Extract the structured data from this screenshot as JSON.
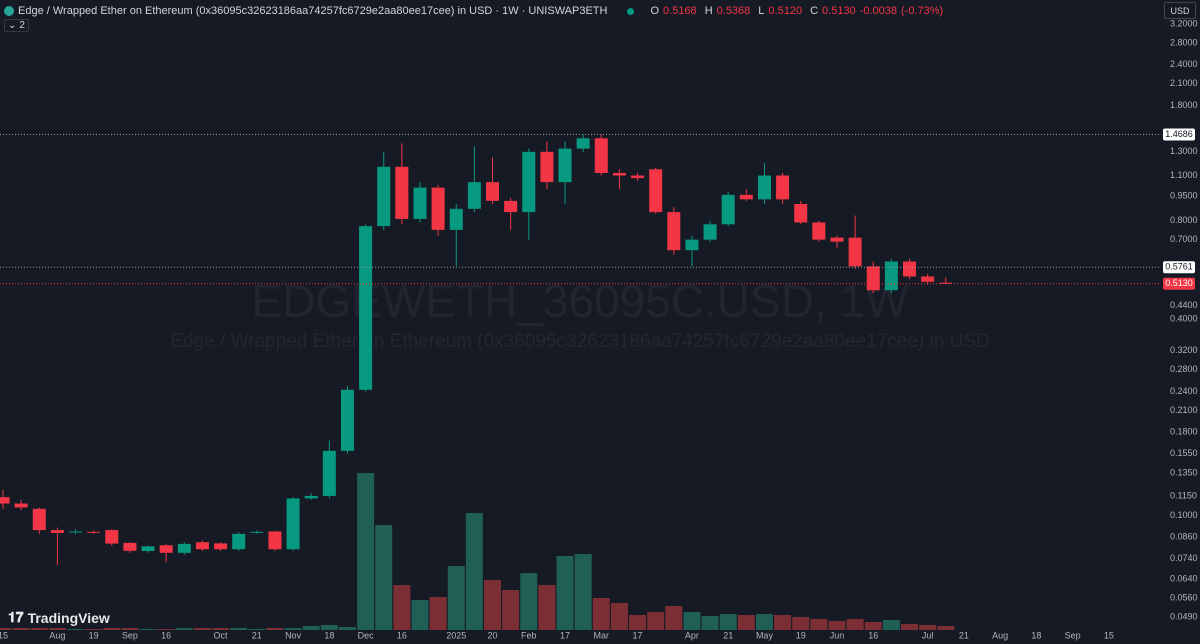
{
  "header": {
    "symbol": "Edge / Wrapped Ether on Ethereum (0x36095c32623186aa74257fc6729e2aa80ee17cee) in USD · 1W · UNISWAP3ETH",
    "o_label": "O",
    "open": "0.5168",
    "h_label": "H",
    "high": "0.5368",
    "l_label": "L",
    "low": "0.5120",
    "c_label": "C",
    "close": "0.5130",
    "change": "-0.0038",
    "change_pct": "(-0.73%)",
    "indicators": "2",
    "currency": "USD",
    "logo": "TradingView"
  },
  "chart_data": {
    "type": "candlestick",
    "watermark": "EDGEWETH_36095C.USD, 1W",
    "watermark_subtitle": "Edge / Wrapped Ether on Ethereum (0x36095c32623186aa74257fc6729e2aa80ee17cee) in USD",
    "log_scale": true,
    "grid": false,
    "up_color": "#089981",
    "down_color": "#f23645",
    "up_volume_color": "#1f5f55",
    "down_volume_color": "#7b2e33",
    "ylim": [
      0.0447,
      3.79
    ],
    "yticks": [
      {
        "value": 3.2,
        "label": "3.2000"
      },
      {
        "value": 2.8,
        "label": "2.8000"
      },
      {
        "value": 2.4,
        "label": "2.4000"
      },
      {
        "value": 2.1,
        "label": "2.1000"
      },
      {
        "value": 1.8,
        "label": "1.8000"
      },
      {
        "value": 1.3,
        "label": "1.3000"
      },
      {
        "value": 1.1,
        "label": "1.1000"
      },
      {
        "value": 0.95,
        "label": "0.9500"
      },
      {
        "value": 0.8,
        "label": "0.8000"
      },
      {
        "value": 0.7,
        "label": "0.7000"
      },
      {
        "value": 0.44,
        "label": "0.4400"
      },
      {
        "value": 0.4,
        "label": "0.4000"
      },
      {
        "value": 0.32,
        "label": "0.3200"
      },
      {
        "value": 0.28,
        "label": "0.2800"
      },
      {
        "value": 0.24,
        "label": "0.2400"
      },
      {
        "value": 0.21,
        "label": "0.2100"
      },
      {
        "value": 0.18,
        "label": "0.1800"
      },
      {
        "value": 0.155,
        "label": "0.1550"
      },
      {
        "value": 0.135,
        "label": "0.1350"
      },
      {
        "value": 0.115,
        "label": "0.1150"
      },
      {
        "value": 0.1,
        "label": "0.1000"
      },
      {
        "value": 0.086,
        "label": "0.0860"
      },
      {
        "value": 0.074,
        "label": "0.0740"
      },
      {
        "value": 0.064,
        "label": "0.0640"
      },
      {
        "value": 0.056,
        "label": "0.0560"
      },
      {
        "value": 0.049,
        "label": "0.0490"
      }
    ],
    "price_lines": [
      {
        "value": 1.4686,
        "label": "1.4686",
        "color": "#ffffff"
      },
      {
        "value": 0.5761,
        "label": "0.5761",
        "color": "#ffffff"
      },
      {
        "value": 0.513,
        "label": "0.5130",
        "color": "#f23645"
      }
    ],
    "categories": [
      "15",
      null,
      null,
      "Aug",
      null,
      "19",
      null,
      "Sep",
      null,
      "16",
      null,
      null,
      "Oct",
      null,
      "21",
      null,
      "Nov",
      null,
      "18",
      null,
      "Dec",
      null,
      "16",
      null,
      null,
      "2025",
      null,
      "20",
      null,
      "Feb",
      null,
      "17",
      null,
      "Mar",
      null,
      "17",
      null,
      null,
      "Apr",
      null,
      "21",
      null,
      "May",
      null,
      "19",
      null,
      "Jun",
      null,
      "16",
      null,
      null,
      "Jul",
      null,
      "21",
      null,
      "Aug",
      null,
      "18",
      null,
      "Sep",
      null,
      "15"
    ],
    "open": [
      0.114,
      0.109,
      0.105,
      0.0904,
      0.089,
      0.0893,
      0.0904,
      0.0826,
      0.078,
      0.0812,
      0.077,
      0.083,
      0.0823,
      0.079,
      0.089,
      0.0895,
      0.079,
      0.113,
      0.115,
      0.158,
      0.243,
      0.77,
      1.17,
      0.81,
      1.01,
      0.75,
      0.87,
      1.05,
      0.92,
      0.85,
      1.3,
      1.05,
      1.33,
      1.43,
      1.12,
      1.1,
      1.15,
      0.85,
      0.65,
      0.7,
      0.78,
      0.96,
      0.93,
      1.1,
      0.9,
      0.79,
      0.71,
      0.71,
      0.58,
      0.49,
      0.6,
      0.54,
      0.5168,
      null,
      null,
      null,
      null,
      null,
      null,
      null,
      null,
      null
    ],
    "high": [
      0.12,
      0.112,
      0.106,
      0.092,
      0.091,
      0.09,
      0.091,
      0.083,
      0.081,
      0.082,
      0.083,
      0.084,
      0.083,
      0.089,
      0.09,
      0.09,
      0.114,
      0.117,
      0.17,
      0.25,
      0.78,
      1.3,
      1.38,
      1.05,
      1.03,
      0.9,
      1.35,
      1.25,
      0.94,
      1.33,
      1.4,
      1.4,
      1.47,
      1.47,
      1.15,
      1.12,
      1.16,
      0.88,
      0.72,
      0.8,
      0.98,
      1.0,
      1.2,
      1.12,
      0.92,
      0.8,
      0.72,
      0.83,
      0.6,
      0.61,
      0.61,
      0.55,
      0.5368,
      null,
      null,
      null,
      null,
      null,
      null,
      null,
      null,
      null
    ],
    "low": [
      0.105,
      0.104,
      0.088,
      0.0707,
      0.088,
      0.088,
      0.081,
      0.077,
      0.077,
      0.072,
      0.076,
      0.078,
      0.078,
      0.078,
      0.088,
      0.078,
      0.078,
      0.112,
      0.113,
      0.155,
      0.24,
      0.75,
      0.78,
      0.79,
      0.72,
      0.58,
      0.85,
      0.9,
      0.75,
      0.7,
      1.0,
      0.9,
      1.3,
      1.1,
      1.0,
      1.06,
      0.84,
      0.63,
      0.58,
      0.69,
      0.77,
      0.92,
      0.9,
      0.9,
      0.78,
      0.69,
      0.66,
      0.57,
      0.48,
      0.48,
      0.53,
      0.51,
      0.512,
      null,
      null,
      null,
      null,
      null,
      null,
      null,
      null,
      null
    ],
    "close": [
      0.109,
      0.106,
      0.0904,
      0.0886,
      0.0895,
      0.089,
      0.0822,
      0.0781,
      0.0806,
      0.077,
      0.082,
      0.079,
      0.079,
      0.088,
      0.0893,
      0.079,
      0.113,
      0.115,
      0.158,
      0.243,
      0.77,
      1.17,
      0.81,
      1.01,
      0.75,
      0.87,
      1.05,
      0.92,
      0.85,
      1.3,
      1.05,
      1.33,
      1.43,
      1.12,
      1.1,
      1.08,
      0.85,
      0.65,
      0.7,
      0.78,
      0.96,
      0.93,
      1.1,
      0.93,
      0.79,
      0.7,
      0.69,
      0.58,
      0.49,
      0.6,
      0.54,
      0.52,
      0.513,
      null,
      null,
      null,
      null,
      null,
      null,
      null,
      null,
      null
    ],
    "volume": [
      2,
      2,
      2,
      2,
      1,
      1,
      2,
      2,
      1,
      1,
      2,
      2,
      2,
      2,
      1,
      2,
      2,
      4,
      5,
      3,
      157,
      105,
      45,
      30,
      33,
      64,
      117,
      50,
      40,
      57,
      45,
      74,
      76,
      32,
      27,
      15,
      18,
      24,
      18,
      14,
      16,
      15,
      16,
      15,
      13,
      11,
      9,
      11,
      8,
      10,
      6,
      5,
      4,
      null,
      null,
      null,
      null,
      null,
      null,
      null,
      null,
      null
    ]
  }
}
